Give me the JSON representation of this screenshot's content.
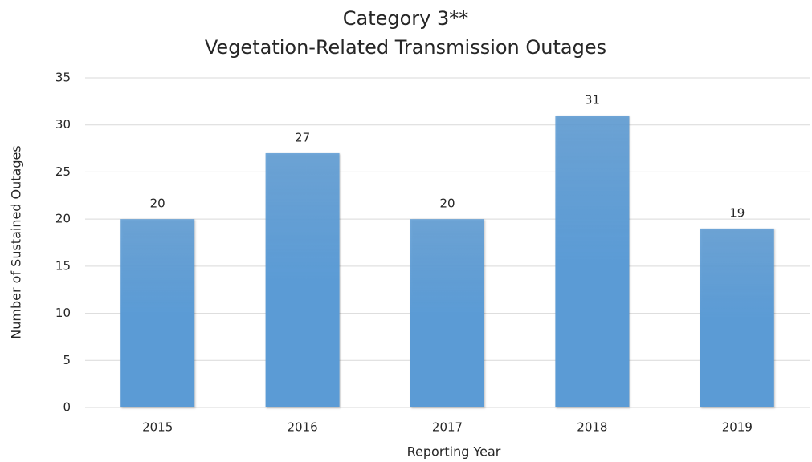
{
  "chart_data": {
    "type": "bar",
    "title": [
      "Category 3**",
      "Vegetation-Related Transmission Outages"
    ],
    "x_label": "Reporting Year",
    "y_label": "Number of Sustained Outages",
    "categories": [
      "2015",
      "2016",
      "2017",
      "2018",
      "2019"
    ],
    "values": [
      20,
      27,
      20,
      31,
      19
    ],
    "color": "#5b9bd5",
    "ylim": [
      0,
      35
    ],
    "yticks": [
      0,
      5,
      10,
      15,
      20,
      25,
      30,
      35
    ],
    "grid": true
  }
}
